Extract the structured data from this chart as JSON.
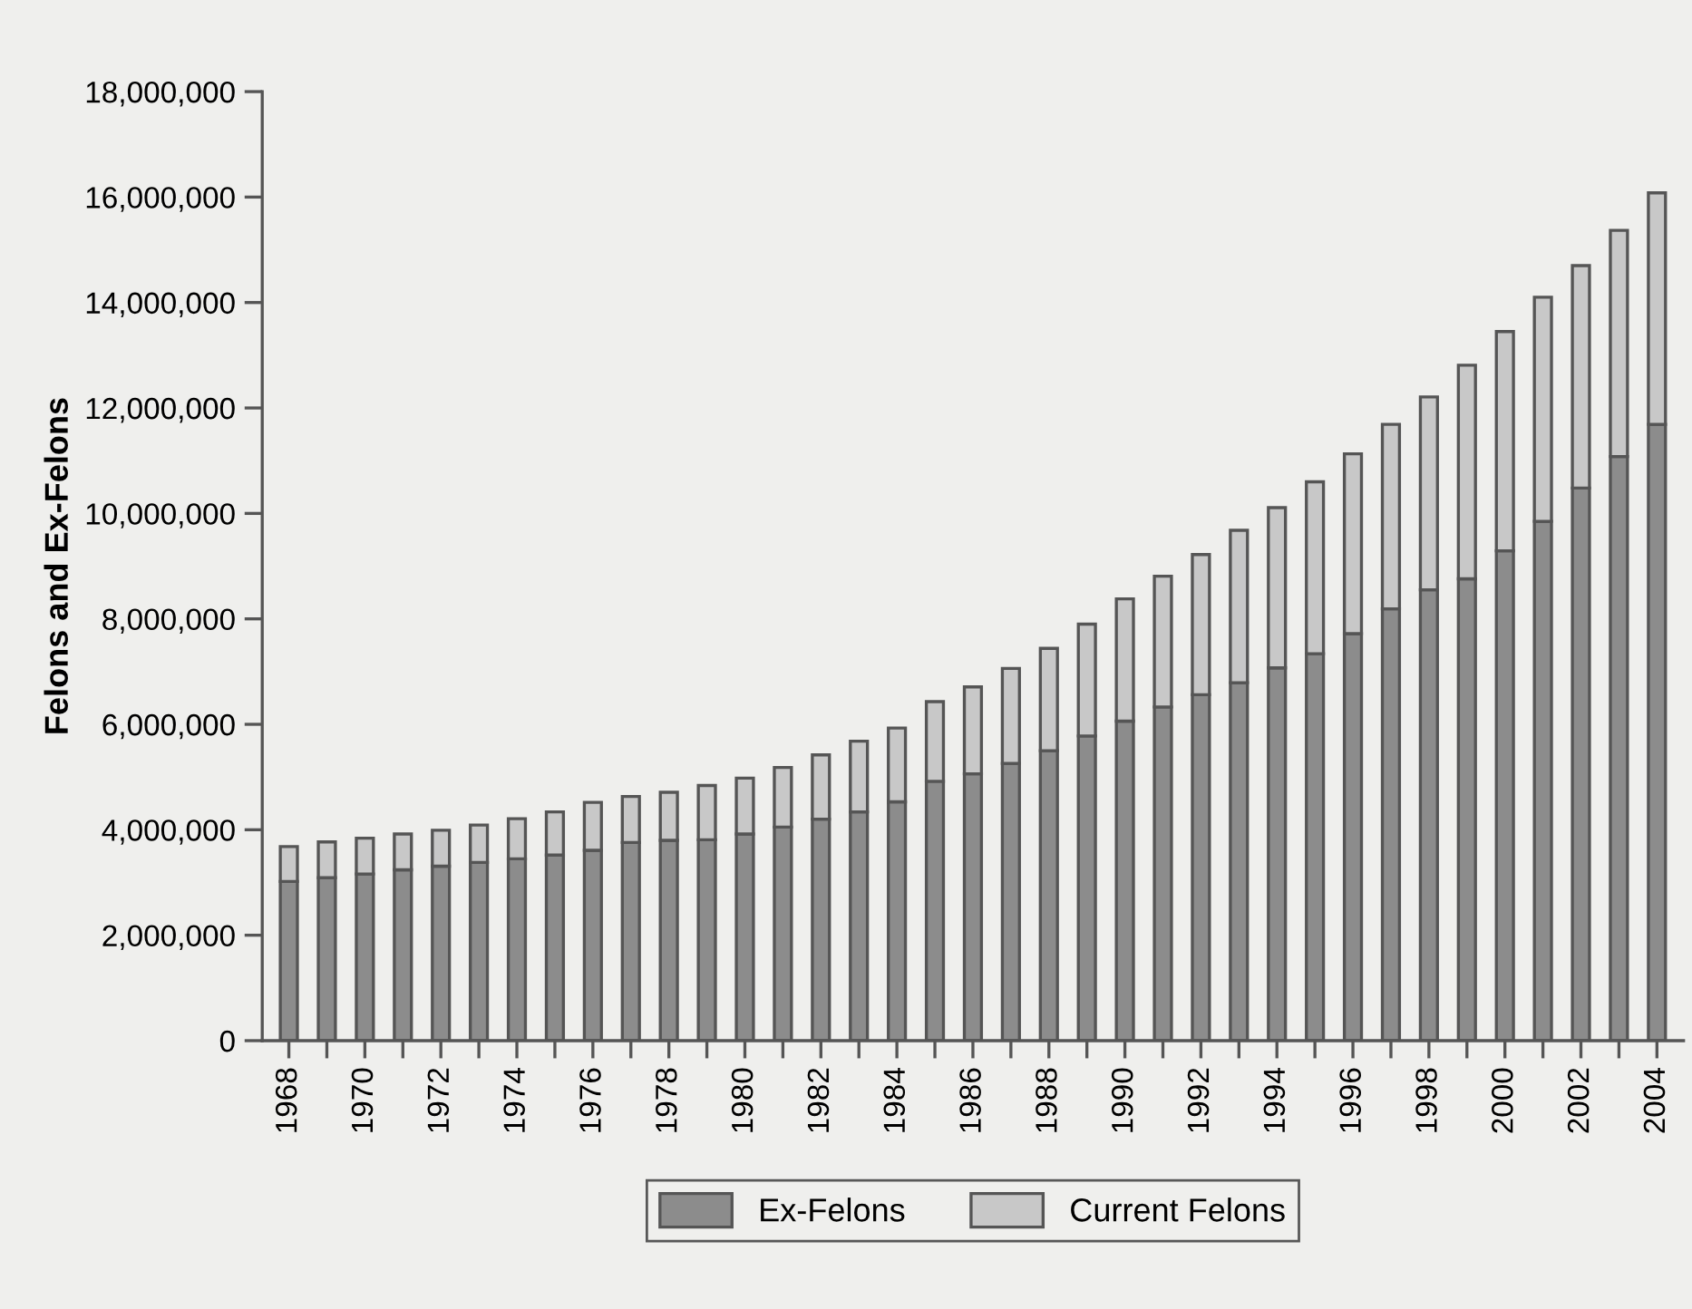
{
  "chart_data": {
    "type": "bar",
    "stacked": true,
    "ylabel": "Felons and Ex-Felons",
    "categories": [
      "1968",
      null,
      "1970",
      null,
      "1972",
      null,
      "1974",
      null,
      "1976",
      null,
      "1978",
      null,
      "1980",
      null,
      "1982",
      null,
      "1984",
      null,
      "1986",
      null,
      "1988",
      null,
      "1990",
      null,
      "1992",
      null,
      "1994",
      null,
      "1996",
      null,
      "1998",
      null,
      "2000",
      null,
      "2002",
      null,
      "2004"
    ],
    "series": [
      {
        "name": "Ex-Felons",
        "color": "#8c8c8c",
        "values": [
          3020000,
          3090000,
          3160000,
          3240000,
          3310000,
          3380000,
          3450000,
          3520000,
          3610000,
          3760000,
          3800000,
          3810000,
          3920000,
          4050000,
          4200000,
          4340000,
          4530000,
          4920000,
          5060000,
          5260000,
          5500000,
          5780000,
          6060000,
          6330000,
          6560000,
          6790000,
          7070000,
          7340000,
          7720000,
          8190000,
          8550000,
          8760000,
          9290000,
          9850000,
          10480000,
          11080000,
          11690000
        ]
      },
      {
        "name": "Current Felons",
        "color": "#c8c8c8",
        "values": [
          660000,
          680000,
          680000,
          680000,
          680000,
          710000,
          760000,
          820000,
          910000,
          870000,
          910000,
          1030000,
          1060000,
          1130000,
          1220000,
          1340000,
          1400000,
          1510000,
          1650000,
          1800000,
          1940000,
          2120000,
          2320000,
          2480000,
          2660000,
          2890000,
          3040000,
          3260000,
          3410000,
          3500000,
          3660000,
          4050000,
          4160000,
          4250000,
          4220000,
          4290000,
          4390000
        ]
      }
    ],
    "ylim": [
      0,
      18000000
    ],
    "yticks": [
      0,
      {
        "value": 2000000,
        "label": "2,000,000"
      },
      {
        "value": 4000000,
        "label": "4,000,000"
      },
      {
        "value": 6000000,
        "label": "6,000,000"
      },
      {
        "value": 8000000,
        "label": "8,000,000"
      },
      {
        "value": 10000000,
        "label": "10,000,000"
      },
      {
        "value": 12000000,
        "label": "12,000,000"
      },
      {
        "value": 14000000,
        "label": "14,000,000"
      },
      {
        "value": 16000000,
        "label": "16,000,000"
      },
      {
        "value": 18000000,
        "label": "18,000,000"
      }
    ],
    "grid": false,
    "legend": "bottom"
  }
}
